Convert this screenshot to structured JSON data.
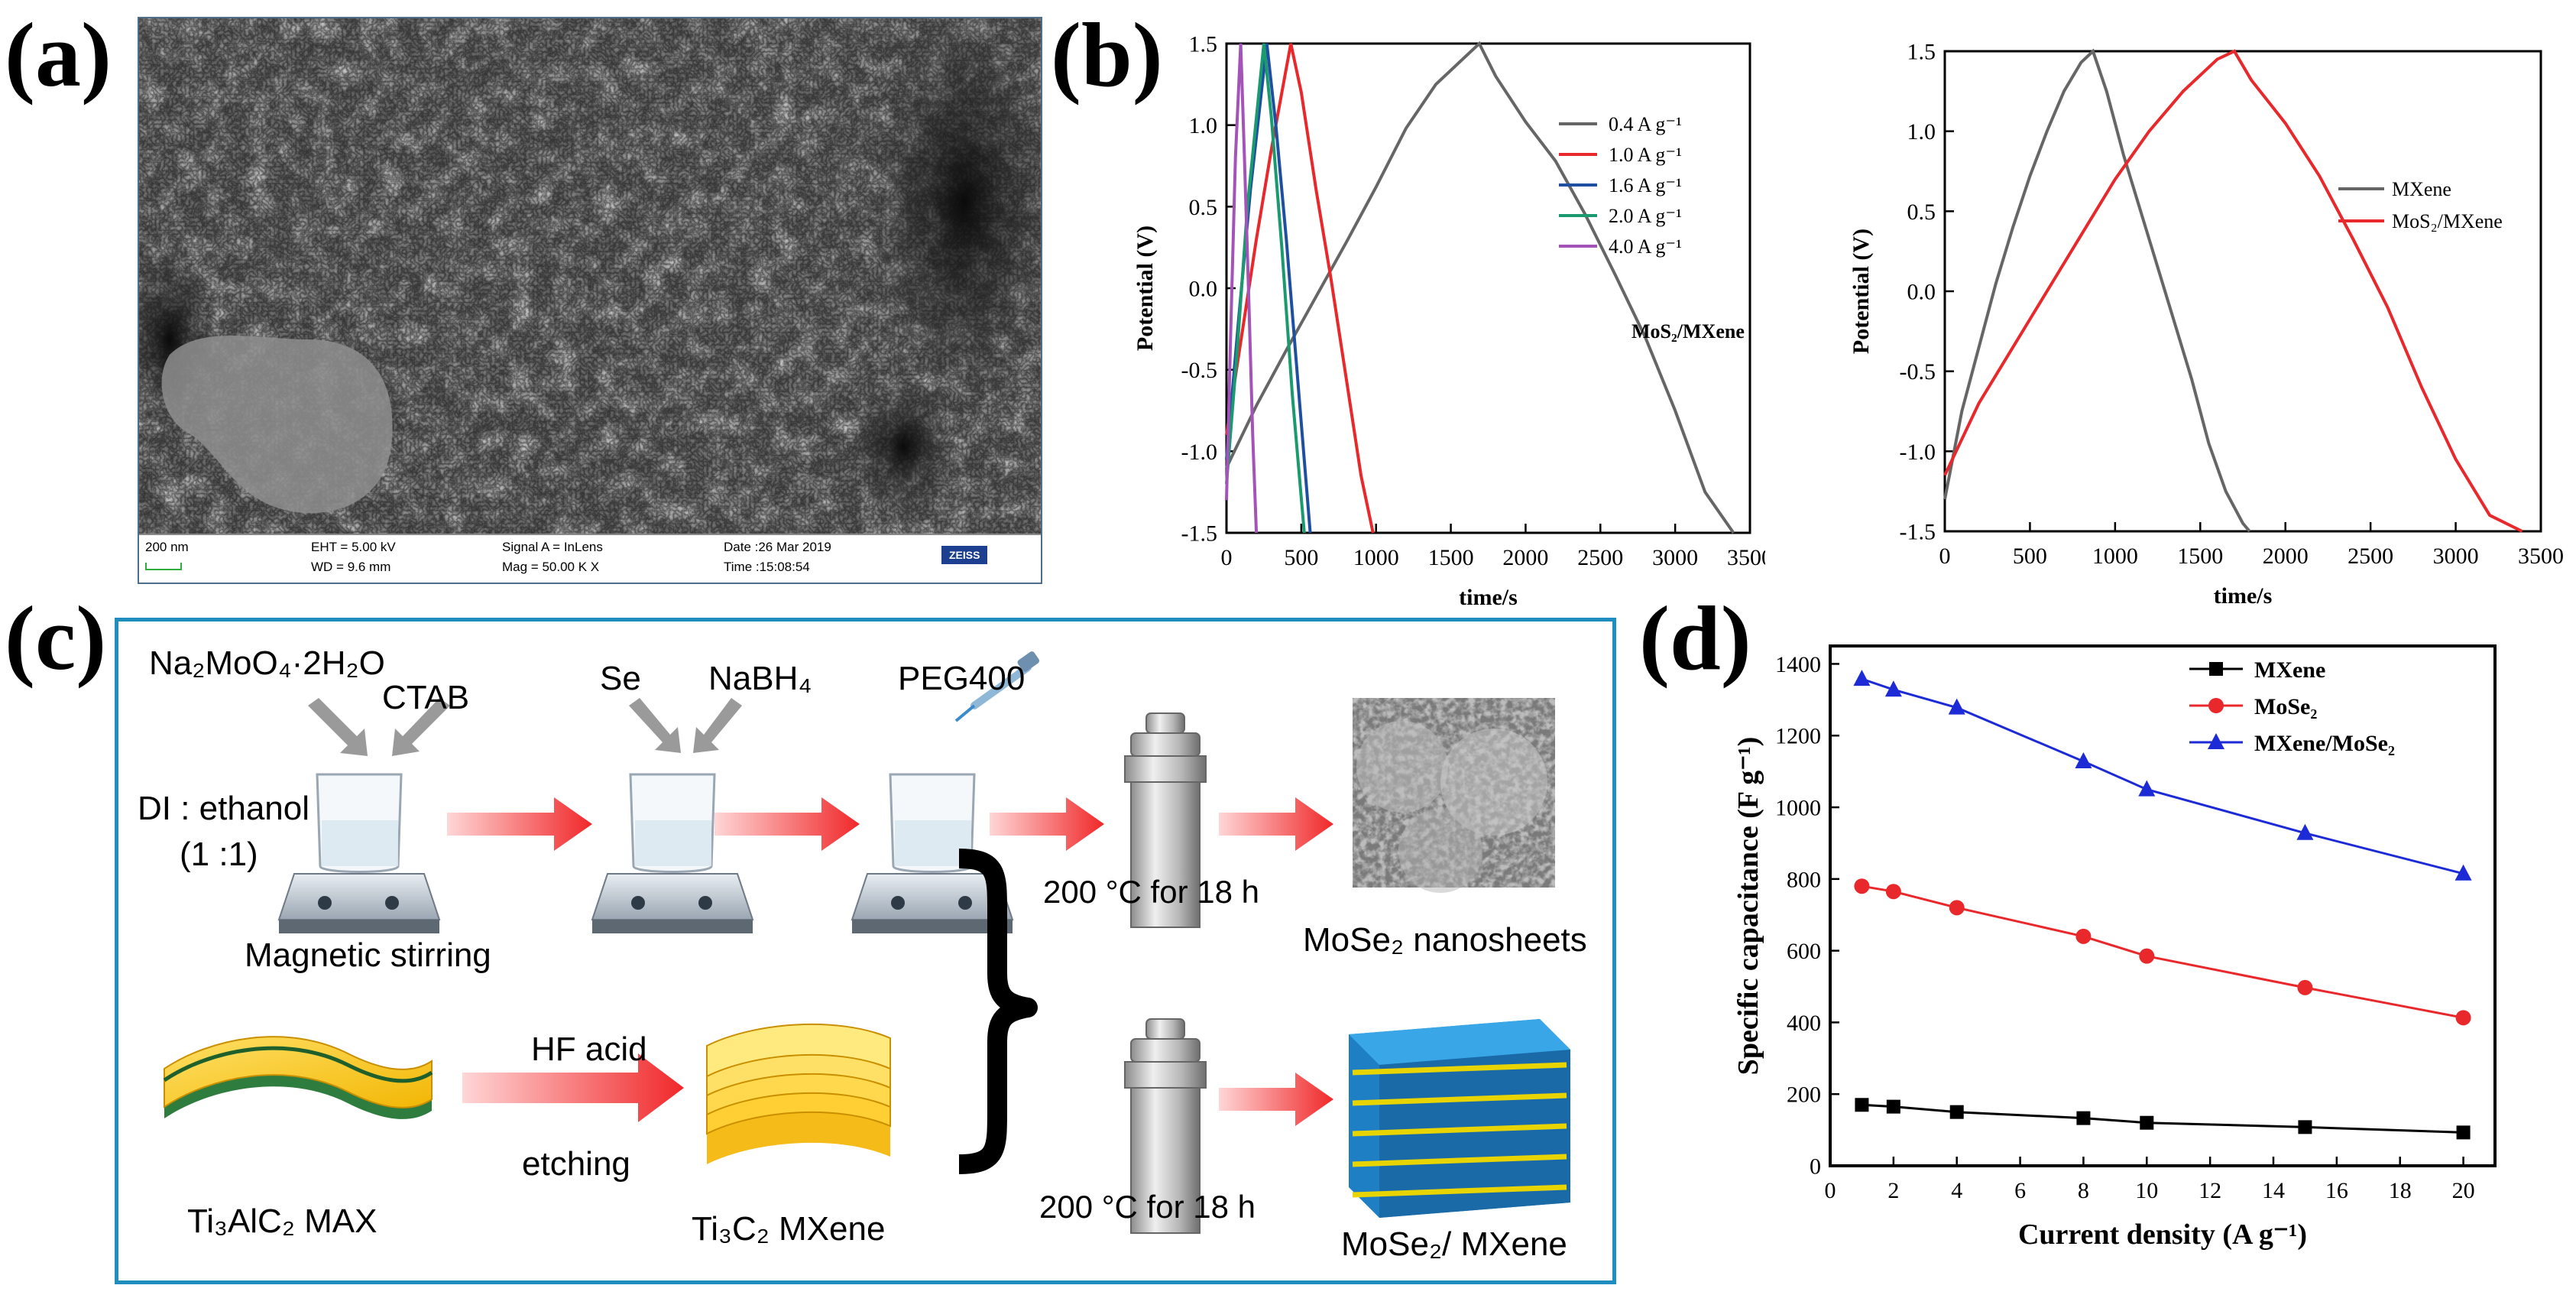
{
  "panels": {
    "a": {
      "label": "(a)",
      "sem": {
        "scale": "200 nm",
        "eht": "EHT =  5.00 kV",
        "wd": "WD =  9.6 mm",
        "signal": "Signal A = InLens",
        "mag": "Mag =  50.00 K X",
        "date": "Date :26 Mar 2019",
        "time": "Time :15:08:54",
        "brand": "ZEISS"
      }
    },
    "b": {
      "label": "(b)"
    },
    "c": {
      "label": "(c)",
      "reagent1": "Na₂MoO₄·2H₂O",
      "ctab": "CTAB",
      "di": "DI : ethanol",
      "ratio": "(1 :1)",
      "stirring": "Magnetic stirring",
      "se": "Se",
      "nabh4": "NaBH₄",
      "peg": "PEG400",
      "cond1": "200 °C for 18 h",
      "cond2": "200 °C for 18 h",
      "product1": "MoSe₂ nanosheets",
      "max": "Ti₃AlC₂ MAX",
      "hf": "HF acid",
      "etching": "etching",
      "mxene": "Ti₃C₂ MXene",
      "product2": "MoSe₂/ MXene"
    },
    "d": {
      "label": "(d)"
    }
  },
  "chart_data": [
    {
      "type": "line",
      "panel": "b-left",
      "xlabel": "time/s",
      "ylabel": "Potential (V)",
      "xlim": [
        0,
        3500
      ],
      "ylim": [
        -1.5,
        1.5
      ],
      "xticks": [
        0,
        500,
        1000,
        1500,
        2000,
        2500,
        3000,
        3500
      ],
      "yticks": [
        -1.5,
        -1.0,
        -0.5,
        0.0,
        0.5,
        1.0,
        1.5
      ],
      "annotation": "MoS₂/MXene",
      "legend_position": "top-right",
      "series": [
        {
          "name": "0.4 A g⁻¹",
          "color": "#666666",
          "x": [
            0,
            200,
            400,
            600,
            800,
            1000,
            1200,
            1400,
            1690,
            1800,
            2000,
            2200,
            2400,
            2600,
            2800,
            3000,
            3200,
            3390
          ],
          "y": [
            -1.1,
            -0.72,
            -0.38,
            -0.05,
            0.28,
            0.62,
            0.98,
            1.25,
            1.5,
            1.3,
            1.02,
            0.78,
            0.45,
            0.08,
            -0.3,
            -0.75,
            -1.25,
            -1.5
          ]
        },
        {
          "name": "1.0 A g⁻¹",
          "color": "#e8282b",
          "x": [
            0,
            100,
            200,
            300,
            430,
            500,
            600,
            700,
            800,
            900,
            980
          ],
          "y": [
            -0.9,
            -0.3,
            0.3,
            0.85,
            1.5,
            1.2,
            0.6,
            0.05,
            -0.55,
            -1.15,
            -1.5
          ]
        },
        {
          "name": "1.6 A g⁻¹",
          "color": "#1f4fa0",
          "x": [
            0,
            80,
            160,
            270,
            330,
            400,
            480,
            560
          ],
          "y": [
            -1.05,
            -0.2,
            0.6,
            1.5,
            1.0,
            0.3,
            -0.6,
            -1.5
          ]
        },
        {
          "name": "2.0 A g⁻¹",
          "color": "#1a9a6e",
          "x": [
            0,
            70,
            140,
            250,
            300,
            370,
            440,
            520
          ],
          "y": [
            -1.2,
            -0.4,
            0.5,
            1.5,
            1.05,
            0.25,
            -0.65,
            -1.5
          ]
        },
        {
          "name": "4.0 A g⁻¹",
          "color": "#a454b8",
          "x": [
            0,
            30,
            60,
            95,
            120,
            150,
            175,
            200
          ],
          "y": [
            -1.3,
            -0.2,
            0.8,
            1.5,
            0.8,
            -0.1,
            -0.9,
            -1.5
          ]
        }
      ]
    },
    {
      "type": "line",
      "panel": "b-right",
      "xlabel": "time/s",
      "ylabel": "Potential (V)",
      "xlim": [
        0,
        3500
      ],
      "ylim": [
        -1.5,
        1.5
      ],
      "xticks": [
        0,
        500,
        1000,
        1500,
        2000,
        2500,
        3000,
        3500
      ],
      "yticks": [
        -1.5,
        -1.0,
        -0.5,
        0.0,
        0.5,
        1.0,
        1.5
      ],
      "legend_position": "right",
      "series": [
        {
          "name": "MXene",
          "color": "#666666",
          "x": [
            0,
            100,
            200,
            300,
            400,
            500,
            600,
            700,
            800,
            870,
            950,
            1050,
            1150,
            1250,
            1350,
            1450,
            1550,
            1650,
            1750,
            1790
          ],
          "y": [
            -1.3,
            -0.75,
            -0.35,
            0.05,
            0.4,
            0.72,
            1.0,
            1.25,
            1.43,
            1.5,
            1.25,
            0.85,
            0.5,
            0.15,
            -0.2,
            -0.55,
            -0.95,
            -1.25,
            -1.45,
            -1.5
          ]
        },
        {
          "name": "MoS₂/MXene",
          "color": "#e8282b",
          "x": [
            0,
            200,
            400,
            600,
            800,
            1000,
            1200,
            1400,
            1600,
            1700,
            1800,
            2000,
            2200,
            2400,
            2600,
            2800,
            3000,
            3200,
            3390
          ],
          "y": [
            -1.15,
            -0.7,
            -0.35,
            0.0,
            0.35,
            0.7,
            1.0,
            1.25,
            1.45,
            1.5,
            1.32,
            1.05,
            0.72,
            0.32,
            -0.1,
            -0.6,
            -1.05,
            -1.4,
            -1.5
          ]
        }
      ]
    },
    {
      "type": "line",
      "panel": "d",
      "xlabel": "Current density (A g⁻¹)",
      "ylabel": "Specific capacitance (F g⁻¹)",
      "xlim": [
        0,
        21
      ],
      "ylim": [
        0,
        1450
      ],
      "xticks": [
        0,
        2,
        4,
        6,
        8,
        10,
        12,
        14,
        16,
        18,
        20
      ],
      "yticks": [
        0,
        200,
        400,
        600,
        800,
        1000,
        1200,
        1400
      ],
      "legend_position": "top-right",
      "x": [
        1,
        2,
        4,
        8,
        10,
        15,
        20
      ],
      "series": [
        {
          "name": "MXene",
          "color": "#000000",
          "marker": "square",
          "values": [
            170,
            165,
            150,
            133,
            120,
            108,
            93
          ]
        },
        {
          "name": "MoSe₂",
          "color": "#e8282b",
          "marker": "circle",
          "values": [
            780,
            765,
            720,
            640,
            585,
            497,
            413
          ]
        },
        {
          "name": "MXene/MoSe₂",
          "color": "#1d2bd6",
          "marker": "triangle",
          "values": [
            1358,
            1328,
            1278,
            1128,
            1050,
            928,
            815
          ]
        }
      ]
    }
  ]
}
